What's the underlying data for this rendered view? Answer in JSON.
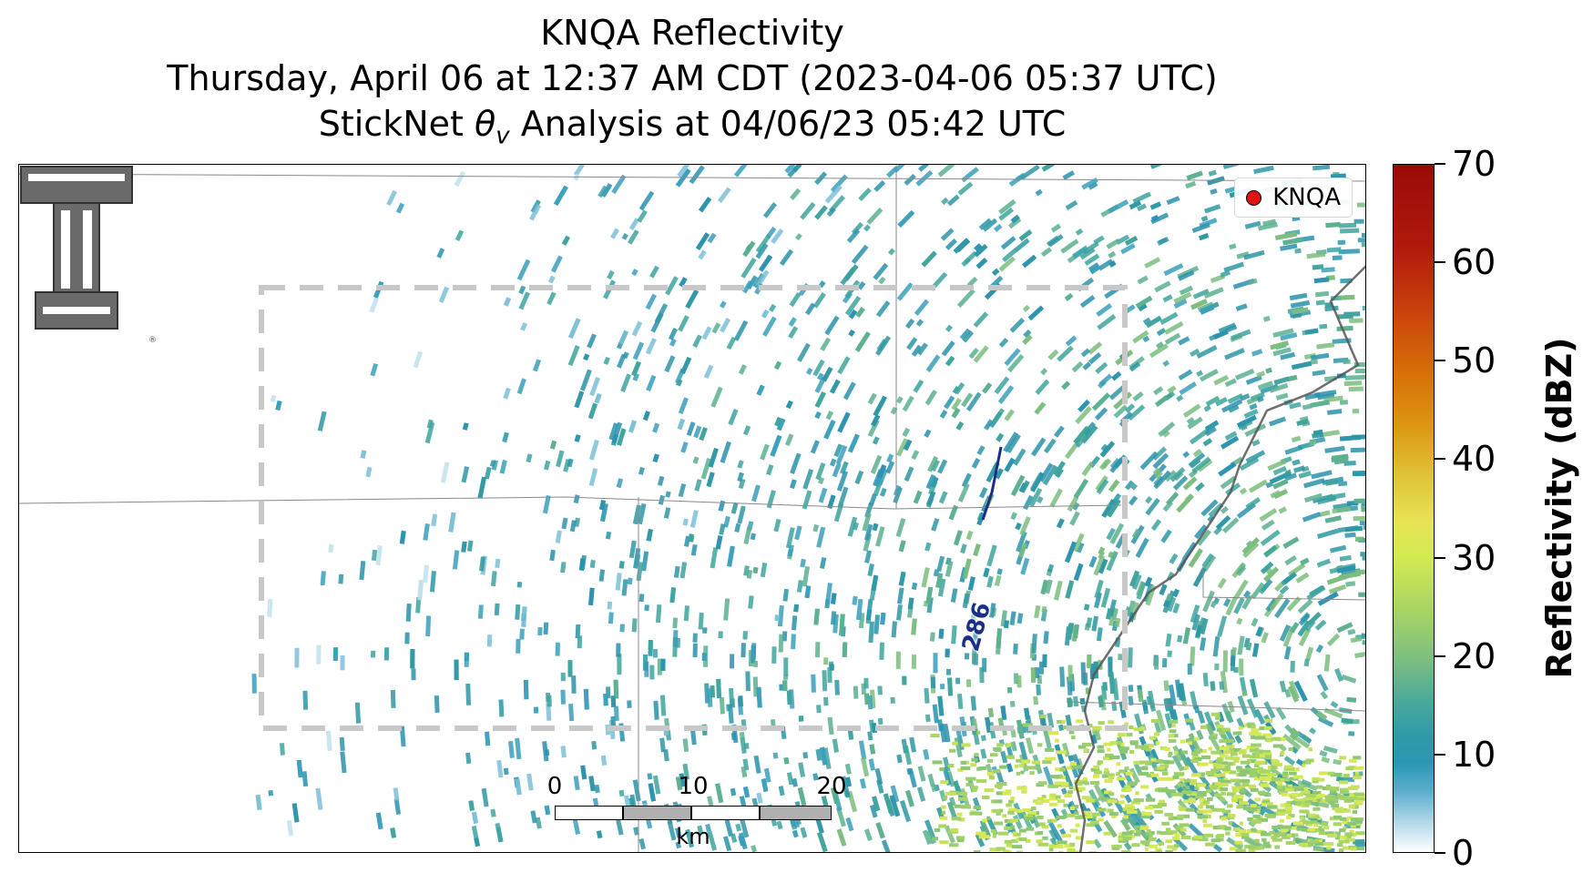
{
  "title": {
    "line1": "KNQA Reflectivity",
    "line2": "Thursday, April 06 at 12:37 AM CDT (2023-04-06 05:37 UTC)",
    "line3_prefix": "StickNet ",
    "line3_symbol": "θ",
    "line3_subscript": "v",
    "line3_suffix": " Analysis at 04/06/23 05:42 UTC"
  },
  "legend": {
    "label": "KNQA",
    "marker_color": "#e01212"
  },
  "logo": {
    "name": "texas-tech-double-t-logo",
    "mark": "®"
  },
  "contour": {
    "label": "286",
    "color": "#1c2e86"
  },
  "scalebar": {
    "ticks": [
      "0",
      "10",
      "20"
    ],
    "unit": "km"
  },
  "colorbar": {
    "label": "Reflectivity (dBZ)",
    "ticks": [
      "0",
      "10",
      "20",
      "30",
      "40",
      "50",
      "60",
      "70"
    ],
    "min": 0,
    "max": 70
  },
  "colors": {
    "analysis_box": "#cccccc",
    "boundaries": "#888888",
    "river": "#555555",
    "logo_fill": "#6a6a6a"
  }
}
